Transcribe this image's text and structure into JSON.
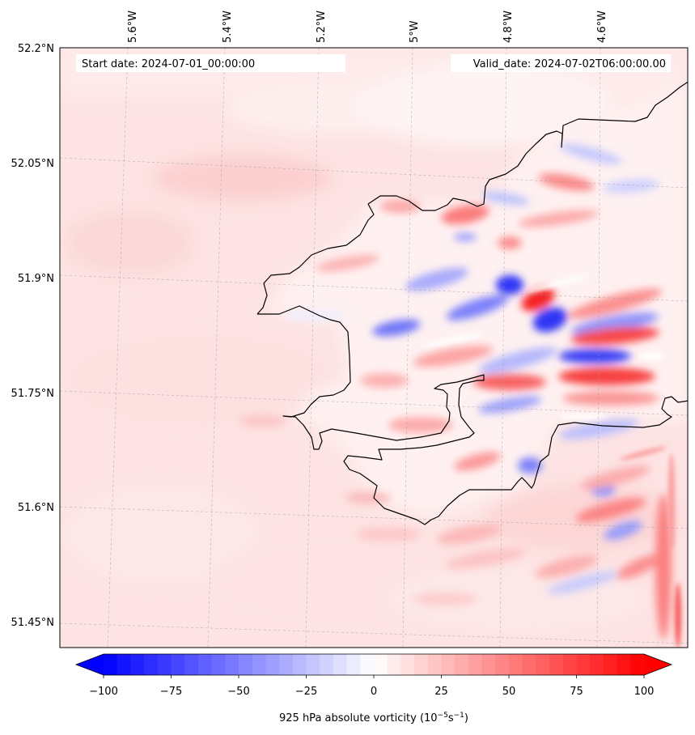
{
  "map": {
    "start_label": "Start date: 2024-07-01_00:00:00",
    "valid_label": "Valid_date: 2024-07-02T06:00:00.00",
    "lon_ticks": [
      "5.6°W",
      "5.4°W",
      "5.2°W",
      "5°W",
      "4.8°W",
      "4.6°W"
    ],
    "lat_ticks": [
      "52.2°N",
      "52.05°N",
      "51.9°N",
      "51.75°N",
      "51.6°N",
      "51.45°N"
    ],
    "coastline_color": "#000000"
  },
  "colorbar": {
    "ticks": [
      "−100",
      "−75",
      "−50",
      "−25",
      "0",
      "25",
      "50",
      "75",
      "100"
    ],
    "label_main": "925 hPa absolute vorticity (10",
    "label_exp1": "−5",
    "label_mid": "s",
    "label_exp2": "−1",
    "label_close": ")",
    "min_color": "#0000ff",
    "mid_color": "#ffffff",
    "max_color": "#ff0000"
  }
}
